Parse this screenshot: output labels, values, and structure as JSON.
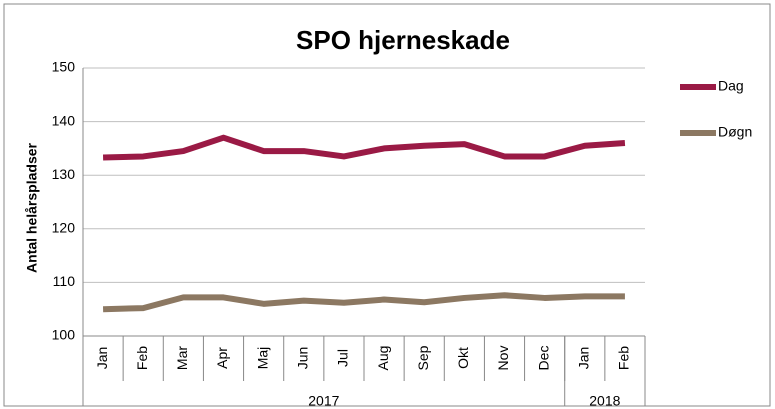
{
  "chart_data": {
    "type": "line",
    "title": "SPO hjerneskade",
    "y_label": "Antal helårspladser",
    "categories": [
      "Jan",
      "Feb",
      "Mar",
      "Apr",
      "Maj",
      "Jun",
      "Jul",
      "Aug",
      "Sep",
      "Okt",
      "Nov",
      "Dec",
      "Jan",
      "Feb"
    ],
    "category_groups": [
      {
        "label": "2017",
        "size": 12
      },
      {
        "label": "2018",
        "size": 2
      }
    ],
    "series": [
      {
        "name": "Dag",
        "color": "#9a1a45",
        "values": [
          133.3,
          133.5,
          134.5,
          137,
          134.5,
          134.5,
          133.5,
          135,
          135.5,
          135.8,
          133.5,
          133.5,
          135.5,
          136
        ]
      },
      {
        "name": "Døgn",
        "color": "#8c7862",
        "values": [
          105,
          105.2,
          107.2,
          107.2,
          106,
          106.6,
          106.2,
          106.8,
          106.3,
          107.1,
          107.6,
          107.1,
          107.4,
          107.4
        ]
      }
    ],
    "ylim": [
      100,
      150
    ],
    "yticks": [
      100,
      110,
      120,
      130,
      140,
      150
    ],
    "grid": true,
    "legend": "right"
  }
}
